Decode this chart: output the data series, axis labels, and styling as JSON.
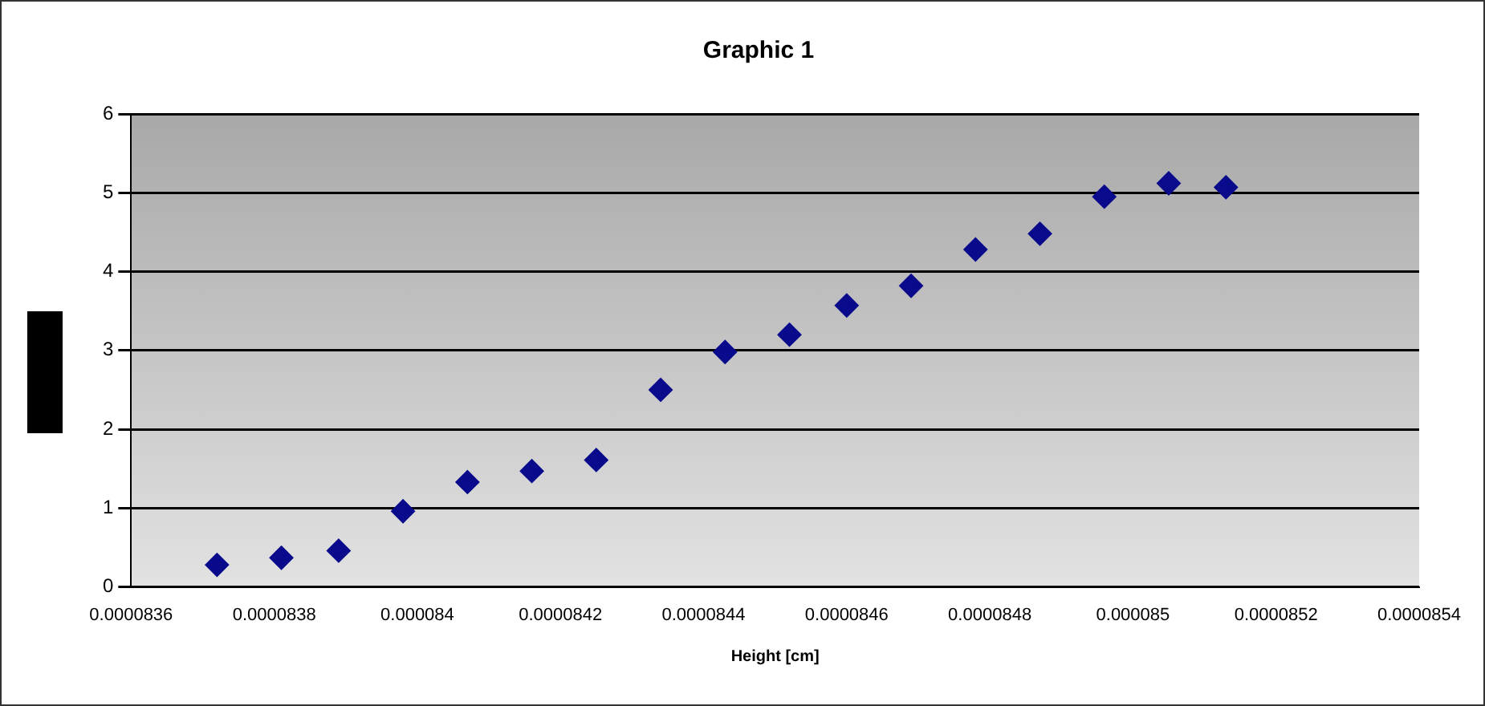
{
  "chart_data": {
    "type": "scatter",
    "title": "Graphic 1",
    "xlabel": "Height [cm]",
    "x": [
      8.372e-05,
      8.381e-05,
      8.389e-05,
      8.398e-05,
      8.407e-05,
      8.416e-05,
      8.425e-05,
      8.434e-05,
      8.443e-05,
      8.452e-05,
      8.46e-05,
      8.469e-05,
      8.478e-05,
      8.487e-05,
      8.496e-05,
      8.505e-05,
      8.513e-05
    ],
    "series": [
      {
        "color": "#0a0a8c",
        "values": [
          0.28,
          0.37,
          0.46,
          0.96,
          1.33,
          1.47,
          1.61,
          2.5,
          2.98,
          3.2,
          3.57,
          3.82,
          4.28,
          4.48,
          4.95,
          5.12,
          5.07
        ]
      }
    ],
    "xlim": [
      8.36e-05,
      8.54e-05
    ],
    "xticks": [
      {
        "value": 8.36e-05,
        "label": "0.0000836"
      },
      {
        "value": 8.38e-05,
        "label": "0.0000838"
      },
      {
        "value": 8.4e-05,
        "label": "0.000084"
      },
      {
        "value": 8.42e-05,
        "label": "0.0000842"
      },
      {
        "value": 8.44e-05,
        "label": "0.0000844"
      },
      {
        "value": 8.46e-05,
        "label": "0.0000846"
      },
      {
        "value": 8.48e-05,
        "label": "0.0000848"
      },
      {
        "value": 8.5e-05,
        "label": "0.000085"
      },
      {
        "value": 8.52e-05,
        "label": "0.0000852"
      },
      {
        "value": 8.54e-05,
        "label": "0.0000854"
      }
    ],
    "ylim": [
      0,
      6
    ],
    "yticks": [
      0,
      1,
      2,
      3,
      4,
      5,
      6
    ],
    "grid": "y",
    "marker": "diamond",
    "legend": false
  }
}
